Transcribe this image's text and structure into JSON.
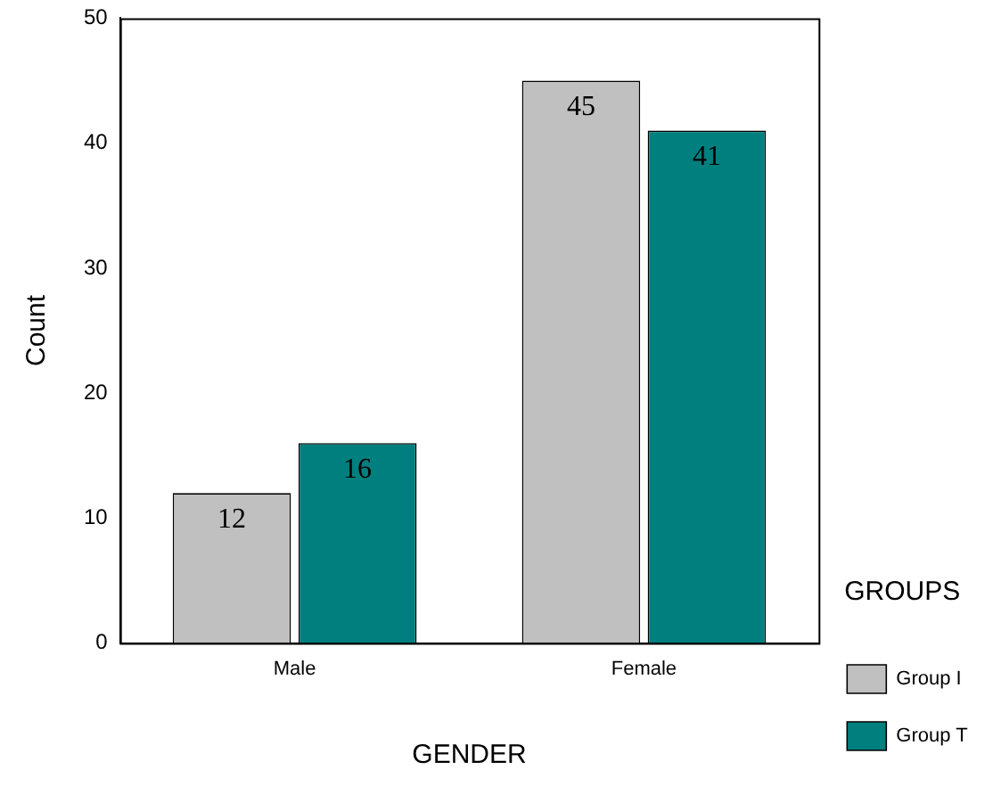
{
  "chart_data": {
    "type": "bar",
    "xlabel": "GENDER",
    "ylabel": "Count",
    "legend_title": "GROUPS",
    "categories": [
      "Male",
      "Female"
    ],
    "series": [
      {
        "name": "Group I",
        "color": "#c0c0c0",
        "values": [
          12,
          45
        ]
      },
      {
        "name": "Group T",
        "color": "#007f7f",
        "values": [
          16,
          41
        ]
      }
    ],
    "ylim": [
      0,
      50
    ],
    "yticks": [
      0,
      10,
      20,
      30,
      40,
      50
    ],
    "grid": false,
    "legend": "bottom right",
    "data_labels": true
  }
}
